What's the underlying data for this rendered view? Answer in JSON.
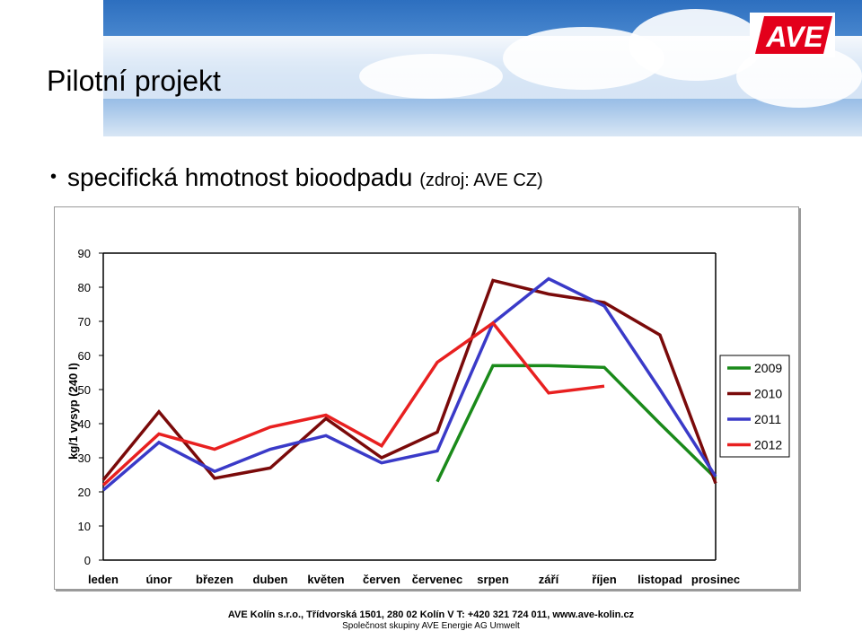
{
  "slide": {
    "title": "Pilotní projekt",
    "bullet_text": "specifická hmotnost bioodpadu",
    "bullet_source": "(zdroj: AVE CZ)",
    "logo_text": "AVE",
    "footer_line1": "AVE Kolín s.r.o., Třídvorská 1501, 280 02 Kolín V T: +420 321 724 011, www.ave-kolin.cz",
    "footer_line2": "Společnost skupiny AVE Energie AG Umwelt"
  },
  "colors": {
    "logo_red": "#e3001b",
    "c2009": "#1a8a1a",
    "c2010": "#7a0a0a",
    "c2011": "#3a3ac8",
    "c2012": "#e82020"
  },
  "chart_data": {
    "type": "line",
    "ylabel": "kg/1 vysyp (240 l)",
    "xlabel": "",
    "ylim": [
      0,
      90
    ],
    "yticks": [
      0,
      10,
      20,
      30,
      40,
      50,
      60,
      70,
      80,
      90
    ],
    "categories": [
      "leden",
      "únor",
      "březen",
      "duben",
      "květen",
      "červen",
      "červenec",
      "srpen",
      "září",
      "říjen",
      "listopad",
      "prosinec"
    ],
    "legend_position": "right",
    "series": [
      {
        "name": "2009",
        "color": "#1a8a1a",
        "values": [
          null,
          null,
          null,
          null,
          null,
          null,
          23,
          57,
          57,
          56.5,
          40,
          24
        ]
      },
      {
        "name": "2010",
        "color": "#7a0a0a",
        "values": [
          23.5,
          43.5,
          24,
          27,
          41.5,
          30,
          37.5,
          82,
          78,
          75.5,
          66,
          22.5
        ]
      },
      {
        "name": "2011",
        "color": "#3a3ac8",
        "values": [
          20.5,
          34.5,
          26,
          32.5,
          36.5,
          28.5,
          32,
          69.5,
          82.5,
          74.5,
          50,
          24.5
        ]
      },
      {
        "name": "2012",
        "color": "#e82020",
        "values": [
          22,
          37,
          32.5,
          39,
          42.5,
          33.5,
          58,
          69.5,
          49,
          51,
          null,
          null
        ]
      }
    ]
  }
}
